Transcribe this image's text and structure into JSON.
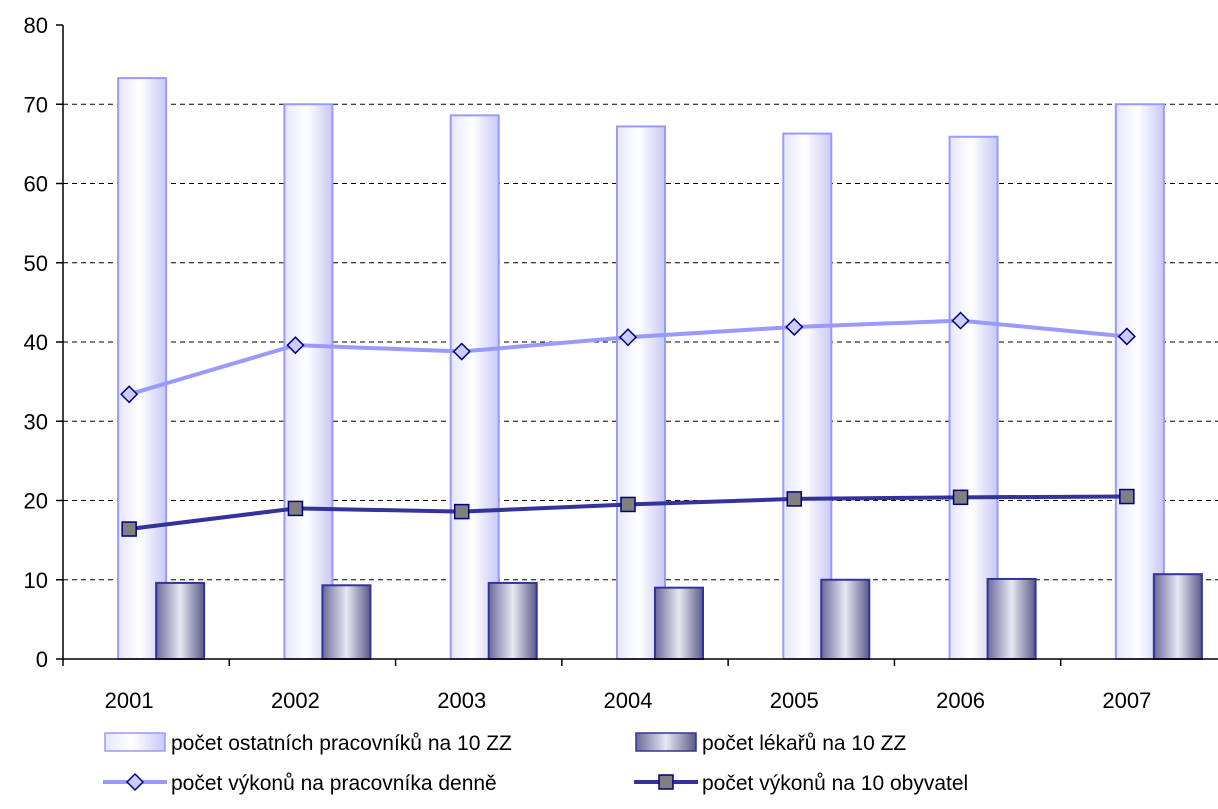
{
  "chart_data": {
    "type": "bar",
    "categories": [
      "2001",
      "2002",
      "2003",
      "2004",
      "2005",
      "2006",
      "2007"
    ],
    "ylim": [
      0,
      80
    ],
    "yticks": [
      0,
      10,
      20,
      30,
      40,
      50,
      60,
      70,
      80
    ],
    "grid": "horizontal dashed",
    "legend_position": "bottom",
    "series": [
      {
        "name": "počet ostatních pracovníků na 10 ZZ",
        "kind": "bar",
        "color": "#ccccff",
        "edge": "#9999ff",
        "values": [
          73.3,
          70.0,
          68.6,
          67.2,
          66.3,
          65.9,
          70.0
        ]
      },
      {
        "name": "počet lékařů na 10 ZZ",
        "kind": "bar",
        "color": "#8080b0",
        "edge": "#333399",
        "values": [
          9.6,
          9.3,
          9.6,
          9.0,
          10.0,
          10.1,
          10.7
        ]
      },
      {
        "name": "počet výkonů na pracovníka denně",
        "kind": "line",
        "color": "#9999ff",
        "marker": "diamond",
        "values": [
          33.4,
          39.6,
          38.8,
          40.6,
          41.9,
          42.7,
          40.7
        ]
      },
      {
        "name": "počet výkonů na 10 obyvatel",
        "kind": "line",
        "color": "#333399",
        "marker": "square",
        "values": [
          16.4,
          19.0,
          18.6,
          19.5,
          20.2,
          20.4,
          20.5
        ]
      }
    ]
  }
}
